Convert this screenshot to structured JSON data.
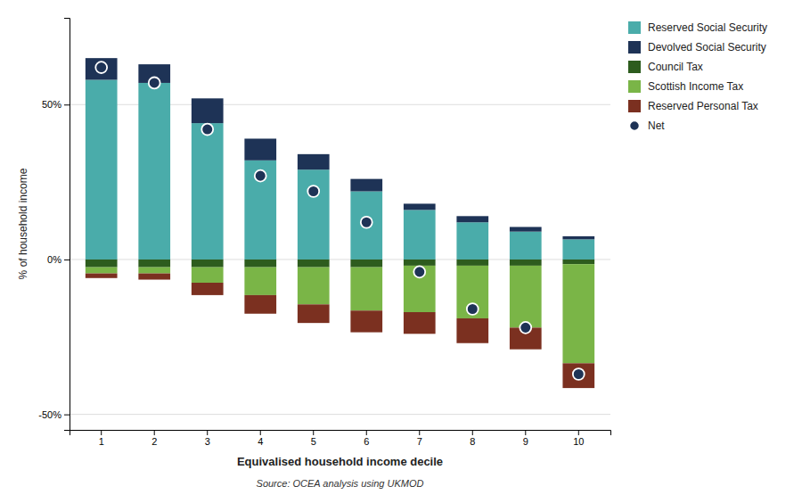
{
  "chart_data": {
    "type": "bar",
    "stacked": true,
    "categories": [
      1,
      2,
      3,
      4,
      5,
      6,
      7,
      8,
      9,
      10
    ],
    "series": [
      {
        "name": "Reserved Social Security",
        "color": "#4aacaa",
        "values": [
          58,
          57,
          44,
          32,
          29,
          22,
          16,
          12,
          9,
          6.5
        ]
      },
      {
        "name": "Devolved Social Security",
        "color": "#1e3356",
        "values": [
          7,
          6,
          8,
          7,
          5,
          4,
          2,
          2,
          1.5,
          1
        ]
      },
      {
        "name": "Council Tax",
        "color": "#2d5c1e",
        "values": [
          -2.5,
          -2.5,
          -2.5,
          -2.5,
          -2.5,
          -2.5,
          -2,
          -2,
          -2,
          -1.5
        ]
      },
      {
        "name": "Scottish Income Tax",
        "color": "#7ab547",
        "values": [
          -2,
          -2,
          -5,
          -9,
          -12,
          -14,
          -15,
          -17,
          -20,
          -32
        ]
      },
      {
        "name": "Reserved Personal Tax",
        "color": "#7b3020",
        "values": [
          -1.5,
          -2,
          -4,
          -6,
          -6,
          -7,
          -7,
          -8,
          -7,
          -8
        ]
      },
      {
        "name": "Net",
        "type": "scatter",
        "marker": "circle",
        "color": "#1e3356",
        "values": [
          62,
          57,
          42,
          27,
          22,
          12,
          -4,
          -16,
          -22,
          -37
        ]
      }
    ],
    "xlabel": "Equivalised household income decile",
    "ylabel": "% of household income",
    "annotations": [
      "Source: OCEA analysis using UKMOD"
    ],
    "ylim": [
      -55,
      78
    ],
    "yticks": [
      {
        "value": -50,
        "label": "-50%"
      },
      {
        "value": 0,
        "label": "0%"
      },
      {
        "value": 50,
        "label": "50%"
      }
    ],
    "grid": true,
    "legend": "upper right"
  }
}
